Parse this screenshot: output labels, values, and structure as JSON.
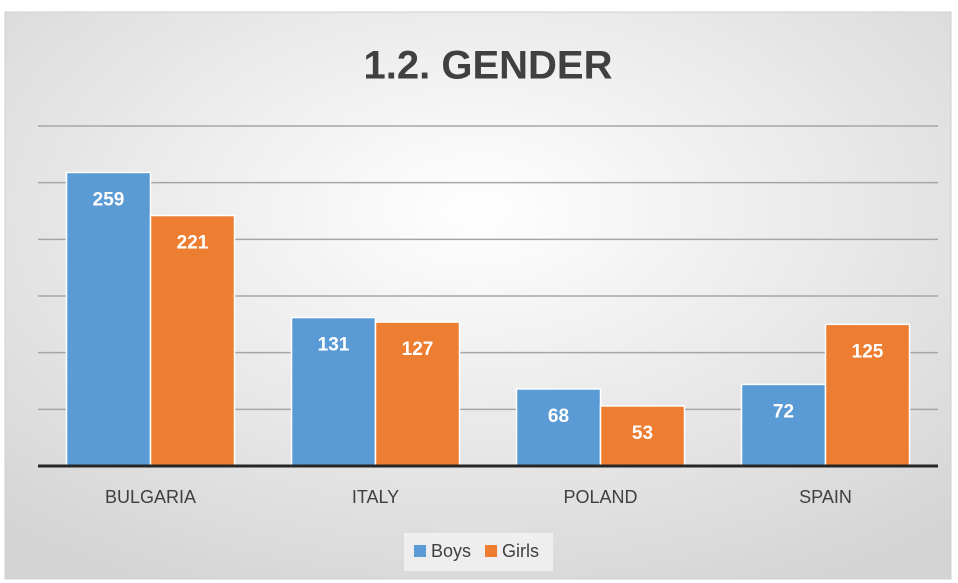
{
  "chart_data": {
    "type": "bar",
    "title": "1.2. GENDER",
    "categories": [
      "BULGARIA",
      "ITALY",
      "POLAND",
      "SPAIN"
    ],
    "series": [
      {
        "name": "Boys",
        "color": "#5b9bd5",
        "values": [
          259,
          131,
          68,
          72
        ]
      },
      {
        "name": "Girls",
        "color": "#ed7d31",
        "values": [
          221,
          127,
          53,
          125
        ]
      }
    ],
    "ylim": [
      0,
      300
    ],
    "yticks": [
      0,
      50,
      100,
      150,
      200,
      250,
      300
    ],
    "grid": true,
    "legend": "bottom"
  }
}
